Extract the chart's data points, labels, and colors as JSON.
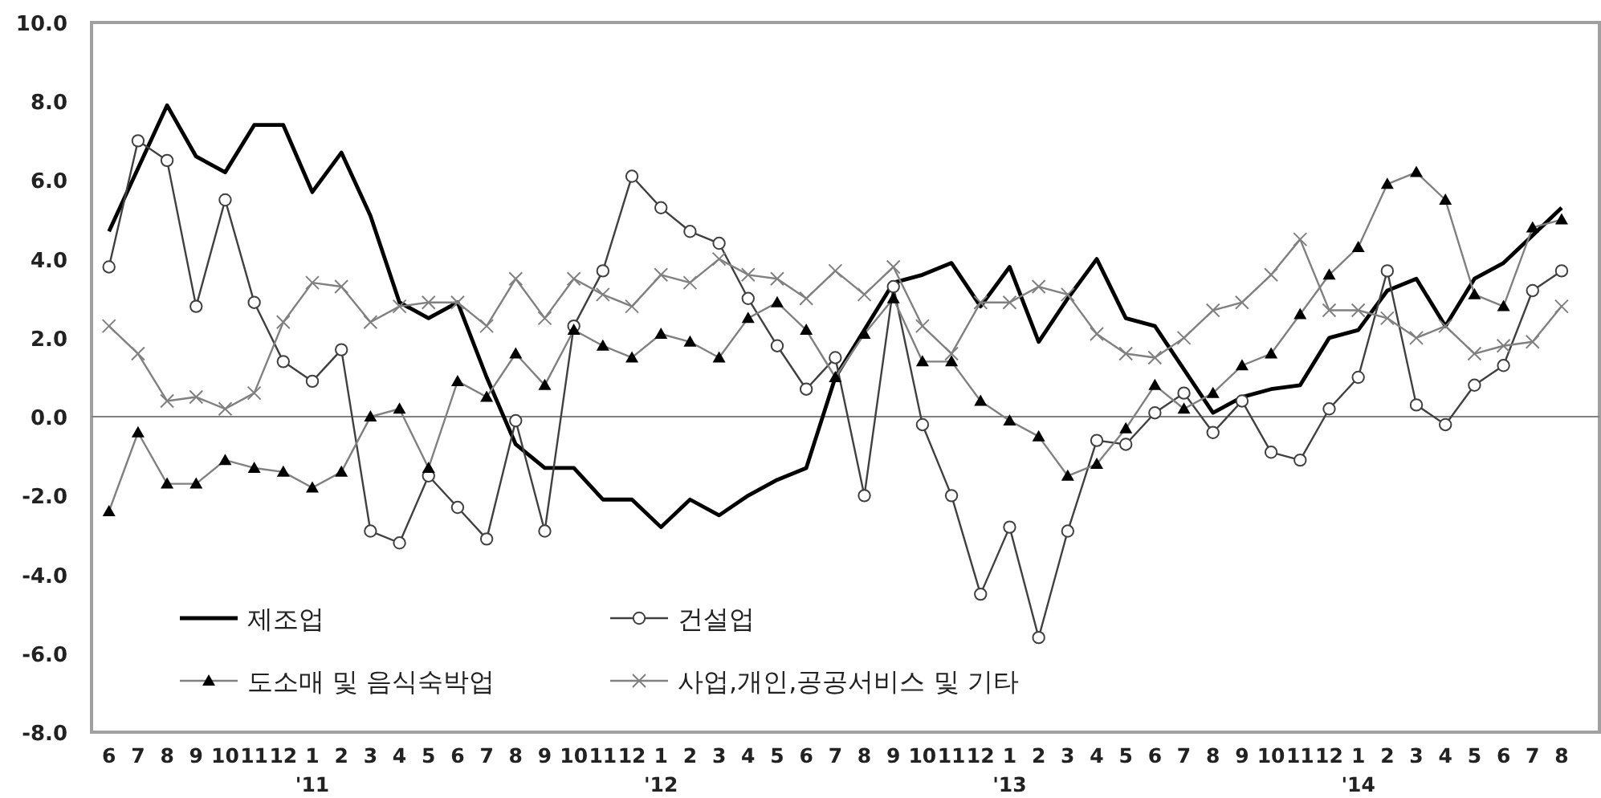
{
  "chart_data": {
    "type": "line",
    "x": [
      "2010-06",
      "2010-07",
      "2010-08",
      "2010-09",
      "2010-10",
      "2010-11",
      "2010-12",
      "2011-01",
      "2011-02",
      "2011-03",
      "2011-04",
      "2011-05",
      "2011-06",
      "2011-07",
      "2011-08",
      "2011-09",
      "2011-10",
      "2011-11",
      "2011-12",
      "2012-01",
      "2012-02",
      "2012-03",
      "2012-04",
      "2012-05",
      "2012-06",
      "2012-07",
      "2012-08",
      "2012-09",
      "2012-10",
      "2012-11",
      "2012-12",
      "2013-01",
      "2013-02",
      "2013-03",
      "2013-04",
      "2013-05",
      "2013-06",
      "2013-07",
      "2013-08",
      "2013-09",
      "2013-10",
      "2013-11",
      "2013-12",
      "2014-01",
      "2014-02",
      "2014-03",
      "2014-04",
      "2014-05",
      "2014-06",
      "2014-07",
      "2014-08"
    ],
    "xlim": [
      "2010-05-13",
      "2014-09-10"
    ],
    "xticks": [
      {
        "value": "2010-06",
        "label": "6"
      },
      {
        "value": "2010-07",
        "label": "7"
      },
      {
        "value": "2010-08",
        "label": "8"
      },
      {
        "value": "2010-09",
        "label": "9"
      },
      {
        "value": "2010-10",
        "label": "10"
      },
      {
        "value": "2010-11",
        "label": "11"
      },
      {
        "value": "2010-12",
        "label": "12"
      },
      {
        "value": "2011-01",
        "label": "1"
      },
      {
        "value": "2011-02",
        "label": "2"
      },
      {
        "value": "2011-03",
        "label": "3"
      },
      {
        "value": "2011-04",
        "label": "4"
      },
      {
        "value": "2011-05",
        "label": "5"
      },
      {
        "value": "2011-06",
        "label": "6"
      },
      {
        "value": "2011-07",
        "label": "7"
      },
      {
        "value": "2011-08",
        "label": "8"
      },
      {
        "value": "2011-09",
        "label": "9"
      },
      {
        "value": "2011-10",
        "label": "10"
      },
      {
        "value": "2011-11",
        "label": "11"
      },
      {
        "value": "2011-12",
        "label": "12"
      },
      {
        "value": "2012-01",
        "label": "1"
      },
      {
        "value": "2012-02",
        "label": "2"
      },
      {
        "value": "2012-03",
        "label": "3"
      },
      {
        "value": "2012-04",
        "label": "4"
      },
      {
        "value": "2012-05",
        "label": "5"
      },
      {
        "value": "2012-06",
        "label": "6"
      },
      {
        "value": "2012-07",
        "label": "7"
      },
      {
        "value": "2012-08",
        "label": "8"
      },
      {
        "value": "2012-09",
        "label": "9"
      },
      {
        "value": "2012-10",
        "label": "10"
      },
      {
        "value": "2012-11",
        "label": "11"
      },
      {
        "value": "2012-12",
        "label": "12"
      },
      {
        "value": "2013-01",
        "label": "1"
      },
      {
        "value": "2013-02",
        "label": "2"
      },
      {
        "value": "2013-03",
        "label": "3"
      },
      {
        "value": "2013-04",
        "label": "4"
      },
      {
        "value": "2013-05",
        "label": "5"
      },
      {
        "value": "2013-06",
        "label": "6"
      },
      {
        "value": "2013-07",
        "label": "7"
      },
      {
        "value": "2013-08",
        "label": "8"
      },
      {
        "value": "2013-09",
        "label": "9"
      },
      {
        "value": "2013-10",
        "label": "10"
      },
      {
        "value": "2013-11",
        "label": "11"
      },
      {
        "value": "2013-12",
        "label": "12"
      },
      {
        "value": "2014-01",
        "label": "1"
      },
      {
        "value": "2014-02",
        "label": "2"
      },
      {
        "value": "2014-03",
        "label": "3"
      },
      {
        "value": "2014-04",
        "label": "4"
      },
      {
        "value": "2014-05",
        "label": "5"
      },
      {
        "value": "2014-06",
        "label": "6"
      },
      {
        "value": "2014-07",
        "label": "7"
      },
      {
        "value": "2014-08",
        "label": "8"
      }
    ],
    "ylim": [
      -8,
      10
    ],
    "yticks": [
      {
        "value": -8,
        "label": "-8.0"
      },
      {
        "value": -6,
        "label": "-6.0"
      },
      {
        "value": -4,
        "label": "-4.0"
      },
      {
        "value": -2,
        "label": "-2.0"
      },
      {
        "value": 0,
        "label": "0.0"
      },
      {
        "value": 2,
        "label": "2.0"
      },
      {
        "value": 4,
        "label": "4.0"
      },
      {
        "value": 6,
        "label": "6.0"
      },
      {
        "value": 8,
        "label": "8.0"
      },
      {
        "value": 10,
        "label": "10.0"
      }
    ],
    "annotations": [
      "'11",
      "'12",
      "'13",
      "'14"
    ],
    "ref_lines": [
      {
        "axis": "y",
        "value": 0,
        "color": "#808080"
      }
    ],
    "grid": false,
    "legend": "bottom left",
    "series": [
      {
        "name": "제조업",
        "color": "#000000",
        "marker": "none",
        "values": [
          4.7,
          6.3,
          7.9,
          6.6,
          6.2,
          7.4,
          7.4,
          5.7,
          6.7,
          5.1,
          2.9,
          2.5,
          2.9,
          1.0,
          -0.7,
          -1.3,
          -1.3,
          -2.1,
          -2.1,
          -2.8,
          -2.1,
          -2.5,
          -2.0,
          -1.6,
          -1.3,
          1.0,
          2.2,
          3.4,
          3.6,
          3.9,
          2.8,
          3.8,
          1.9,
          3.0,
          4.0,
          2.5,
          2.3,
          1.2,
          0.1,
          0.5,
          0.7,
          0.8,
          2.0,
          2.2,
          3.2,
          3.5,
          2.3,
          3.5,
          3.9,
          4.6,
          5.3
        ]
      },
      {
        "name": "건설업",
        "color": "#404040",
        "marker": "circle",
        "values": [
          3.8,
          7.0,
          6.5,
          2.8,
          5.5,
          2.9,
          1.4,
          0.9,
          1.7,
          -2.9,
          -3.2,
          -1.5,
          -2.3,
          -3.1,
          -0.1,
          -2.9,
          2.3,
          3.7,
          6.1,
          5.3,
          4.7,
          4.4,
          3.0,
          1.8,
          0.7,
          1.5,
          -2.0,
          3.3,
          -0.2,
          -2.0,
          -4.5,
          -2.8,
          -5.6,
          -2.9,
          -0.6,
          -0.7,
          0.1,
          0.6,
          -0.4,
          0.4,
          -0.9,
          -1.1,
          0.2,
          1.0,
          3.7,
          0.3,
          -0.2,
          0.8,
          1.3,
          3.2,
          3.7
        ]
      },
      {
        "name": "도소매 및 음식숙박업",
        "color": "#808080",
        "marker": "triangle",
        "values": [
          -2.4,
          -0.4,
          -1.7,
          -1.7,
          -1.1,
          -1.3,
          -1.4,
          -1.8,
          -1.4,
          0.0,
          0.2,
          -1.3,
          0.9,
          0.5,
          1.6,
          0.8,
          2.2,
          1.8,
          1.5,
          2.1,
          1.9,
          1.5,
          2.5,
          2.9,
          2.2,
          1.0,
          2.1,
          3.0,
          1.4,
          1.4,
          0.4,
          -0.1,
          -0.5,
          -1.5,
          -1.2,
          -0.3,
          0.8,
          0.2,
          0.6,
          1.3,
          1.6,
          2.6,
          3.6,
          4.3,
          5.9,
          6.2,
          5.5,
          3.1,
          2.8,
          4.8,
          5.0
        ]
      },
      {
        "name": "사업,개인,공공서비스 및 기타",
        "color": "#808080",
        "marker": "cross",
        "values": [
          2.3,
          1.6,
          0.4,
          0.5,
          0.2,
          0.6,
          2.4,
          3.4,
          3.3,
          2.4,
          2.8,
          2.9,
          2.9,
          2.3,
          3.5,
          2.5,
          3.5,
          3.1,
          2.8,
          3.6,
          3.4,
          4.0,
          3.6,
          3.5,
          3.0,
          3.7,
          3.1,
          3.8,
          2.3,
          1.6,
          2.9,
          2.9,
          3.3,
          3.1,
          2.1,
          1.6,
          1.5,
          2.0,
          2.7,
          2.9,
          3.6,
          4.5,
          2.7,
          2.7,
          2.5,
          2.0,
          2.3,
          1.6,
          1.8,
          1.9,
          2.8
        ]
      }
    ]
  }
}
